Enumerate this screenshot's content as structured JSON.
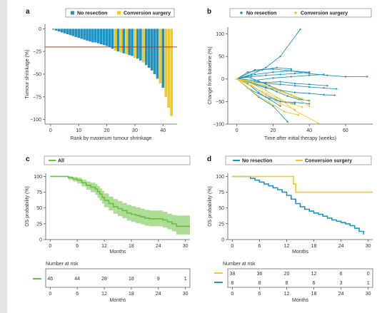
{
  "colors": {
    "blue": "#1f94c2",
    "yellow": "#f2c928",
    "green": "#6abf43",
    "green_band": "#a6d98a",
    "red": "#d22f27",
    "axis": "#555555"
  },
  "chart_data": [
    {
      "panel": "a",
      "type": "bar",
      "xlabel": "Rank by maximum tumour shrinkage",
      "ylabel": "Tumour shrinkage (%)",
      "xlim": [
        -2,
        45
      ],
      "ylim": [
        -105,
        5
      ],
      "xticks": [
        0,
        10,
        20,
        30,
        40
      ],
      "yticks": [
        0,
        -25,
        -50,
        -75,
        -100
      ],
      "legend": [
        "No resection",
        "Conversion surgery"
      ],
      "threshold": -20,
      "values": [
        -1,
        -2,
        -3,
        -4,
        -5,
        -6,
        -7,
        -8,
        -9,
        -10,
        -11,
        -12,
        -13,
        -14,
        -15,
        -15,
        -16,
        -17,
        -18,
        -19,
        -20,
        -22,
        -24,
        -25,
        -26,
        -27,
        -28,
        -29,
        -30,
        -32,
        -33,
        -35,
        -37,
        -40,
        -43,
        -46,
        -50,
        -55,
        -60,
        -65,
        -75,
        -87,
        -96
      ],
      "groups": [
        "N",
        "N",
        "N",
        "N",
        "N",
        "N",
        "N",
        "N",
        "N",
        "N",
        "N",
        "N",
        "N",
        "N",
        "N",
        "N",
        "N",
        "N",
        "N",
        "N",
        "N",
        "N",
        "Y",
        "N",
        "Y",
        "N",
        "Y",
        "N",
        "N",
        "Y",
        "N",
        "N",
        "Y",
        "N",
        "N",
        "N",
        "N",
        "N",
        "Y",
        "N",
        "Y",
        "Y",
        "Y"
      ]
    },
    {
      "panel": "b",
      "type": "line",
      "xlabel": "Time after initial therapy (weeks)",
      "ylabel": "Change from baseline (%)",
      "xlim": [
        -5,
        75
      ],
      "ylim": [
        -100,
        115
      ],
      "xticks": [
        0,
        20,
        40,
        60
      ],
      "yticks": [
        100,
        50,
        0,
        -50,
        -100
      ],
      "legend": [
        "No resection",
        "Conversion surgery"
      ],
      "series": [
        {
          "group": "N",
          "x": [
            0,
            8,
            16,
            24,
            32,
            40
          ],
          "y": [
            0,
            5,
            8,
            10,
            12,
            15
          ]
        },
        {
          "group": "N",
          "x": [
            0,
            8,
            16,
            24,
            35
          ],
          "y": [
            0,
            10,
            25,
            50,
            110
          ]
        },
        {
          "group": "N",
          "x": [
            0,
            10,
            20,
            30,
            40,
            50,
            60,
            72
          ],
          "y": [
            0,
            10,
            15,
            18,
            12,
            8,
            5,
            5
          ]
        },
        {
          "group": "N",
          "x": [
            0,
            8,
            16,
            24,
            32,
            40,
            48,
            55
          ],
          "y": [
            0,
            -5,
            -10,
            -12,
            -15,
            -18,
            -20,
            -22
          ]
        },
        {
          "group": "N",
          "x": [
            0,
            8,
            16,
            24,
            32,
            40,
            48,
            54
          ],
          "y": [
            0,
            -10,
            -20,
            -25,
            -30,
            -32,
            -35,
            -36
          ]
        },
        {
          "group": "N",
          "x": [
            0,
            6,
            12,
            20,
            28
          ],
          "y": [
            0,
            -20,
            -40,
            -60,
            -95
          ]
        },
        {
          "group": "N",
          "x": [
            0,
            8,
            16,
            24,
            32
          ],
          "y": [
            0,
            -15,
            -35,
            -50,
            -55
          ]
        },
        {
          "group": "N",
          "x": [
            0,
            6,
            12,
            18,
            24,
            30,
            36
          ],
          "y": [
            0,
            5,
            -5,
            -15,
            -25,
            -35,
            -45
          ]
        },
        {
          "group": "N",
          "x": [
            0,
            8,
            16,
            22,
            28,
            34,
            40
          ],
          "y": [
            0,
            -8,
            -18,
            -28,
            -38,
            -45,
            -48
          ]
        },
        {
          "group": "N",
          "x": [
            0,
            6,
            14,
            22,
            30
          ],
          "y": [
            0,
            15,
            20,
            25,
            22
          ]
        },
        {
          "group": "N",
          "x": [
            0,
            8,
            16,
            24,
            32,
            40,
            50
          ],
          "y": [
            0,
            -5,
            -8,
            -6,
            -10,
            -12,
            -15
          ]
        },
        {
          "group": "N",
          "x": [
            0,
            10,
            20,
            30,
            40,
            48
          ],
          "y": [
            0,
            -3,
            2,
            5,
            8,
            10
          ]
        },
        {
          "group": "N",
          "x": [
            0,
            6,
            12,
            18,
            24
          ],
          "y": [
            0,
            -10,
            -30,
            -45,
            -60
          ]
        },
        {
          "group": "N",
          "x": [
            0,
            8,
            16,
            24,
            32,
            40
          ],
          "y": [
            0,
            -25,
            -40,
            -50,
            -52,
            -55
          ]
        },
        {
          "group": "N",
          "x": [
            0,
            10,
            20,
            30,
            40
          ],
          "y": [
            0,
            20,
            22,
            18,
            15
          ]
        },
        {
          "group": "Y",
          "x": [
            0,
            8,
            16,
            24,
            32,
            45
          ],
          "y": [
            0,
            -10,
            -25,
            -45,
            -70,
            -98
          ]
        },
        {
          "group": "Y",
          "x": [
            0,
            8,
            16,
            24,
            32
          ],
          "y": [
            0,
            -15,
            -35,
            -55,
            -68
          ]
        },
        {
          "group": "Y",
          "x": [
            0,
            6,
            14,
            22,
            30,
            36
          ],
          "y": [
            0,
            -12,
            -28,
            -42,
            -55,
            -62
          ]
        },
        {
          "group": "Y",
          "x": [
            0,
            8,
            16,
            24,
            32,
            40
          ],
          "y": [
            0,
            -5,
            -15,
            -28,
            -40,
            -60
          ]
        },
        {
          "group": "Y",
          "x": [
            0,
            6,
            12,
            18,
            26,
            34
          ],
          "y": [
            0,
            -20,
            -38,
            -52,
            -72,
            -80
          ]
        },
        {
          "group": "Y",
          "x": [
            0,
            10,
            20,
            30,
            40
          ],
          "y": [
            0,
            -8,
            -20,
            -35,
            -50
          ]
        }
      ]
    },
    {
      "panel": "c",
      "type": "line",
      "xlabel": "Months",
      "ylabel": "OS probability (%)",
      "xlim": [
        -1,
        31
      ],
      "ylim": [
        0,
        105
      ],
      "xticks": [
        0,
        6,
        12,
        18,
        24,
        30
      ],
      "yticks": [
        0,
        25,
        50,
        75,
        100
      ],
      "legend": [
        "All"
      ],
      "series": [
        {
          "name": "All",
          "x": [
            0,
            3,
            4,
            5,
            6,
            7,
            8,
            9,
            10,
            10.5,
            11,
            11.5,
            12,
            13,
            14,
            15,
            16,
            17,
            18,
            19,
            20,
            21,
            22,
            23,
            24,
            25,
            26,
            27,
            28,
            31
          ],
          "y": [
            100,
            100,
            98,
            96,
            94,
            90,
            86,
            83,
            80,
            76,
            72,
            67,
            62,
            57,
            52,
            49,
            46,
            42,
            40,
            38,
            36,
            34,
            33,
            33,
            33,
            31,
            28,
            25,
            21,
            21
          ],
          "upper": [
            100,
            100,
            100,
            99,
            98,
            95,
            92,
            90,
            88,
            85,
            81,
            77,
            73,
            68,
            64,
            61,
            58,
            55,
            53,
            51,
            49,
            47,
            46,
            46,
            46,
            44,
            41,
            39,
            38,
            38
          ],
          "lower": [
            100,
            100,
            95,
            92,
            89,
            84,
            79,
            75,
            71,
            66,
            62,
            57,
            51,
            46,
            41,
            37,
            34,
            30,
            28,
            26,
            24,
            22,
            21,
            21,
            21,
            19,
            16,
            13,
            8,
            8
          ]
        }
      ],
      "risk_table": {
        "label": "Number at risk",
        "values": [
          "46",
          "44",
          "28",
          "18",
          "9",
          "1"
        ]
      }
    },
    {
      "panel": "d",
      "type": "line",
      "xlabel": "Months",
      "ylabel": "OS probability (%)",
      "xlim": [
        -1,
        31
      ],
      "ylim": [
        0,
        105
      ],
      "xticks": [
        0,
        6,
        12,
        18,
        24,
        30
      ],
      "yticks": [
        0,
        25,
        50,
        75,
        100
      ],
      "legend": [
        "No resection",
        "Conversion surgery"
      ],
      "series": [
        {
          "name": "No resection",
          "group": "N",
          "x": [
            0,
            3,
            4,
            5,
            6,
            7,
            8,
            9,
            10,
            11,
            12,
            13,
            14,
            15,
            16,
            17,
            18,
            19,
            20,
            21,
            22,
            23,
            24,
            25,
            26,
            27,
            28,
            29
          ],
          "y": [
            100,
            100,
            97,
            94,
            91,
            88,
            85,
            82,
            79,
            75,
            70,
            64,
            57,
            52,
            48,
            45,
            42,
            40,
            37,
            34,
            31,
            29,
            27,
            25,
            22,
            18,
            13,
            8
          ]
        },
        {
          "name": "Conversion surgery",
          "group": "Y",
          "x": [
            0,
            13,
            13.5,
            14,
            31
          ],
          "y": [
            100,
            100,
            88,
            75,
            75
          ]
        }
      ],
      "risk_table": {
        "label": "Number at risk",
        "rows": [
          {
            "group": "Y",
            "values": [
              "38",
              "36",
              "20",
              "12",
              "6",
              "0"
            ]
          },
          {
            "group": "N",
            "values": [
              "8",
              "8",
              "8",
              "6",
              "3",
              "1"
            ]
          }
        ]
      }
    }
  ]
}
